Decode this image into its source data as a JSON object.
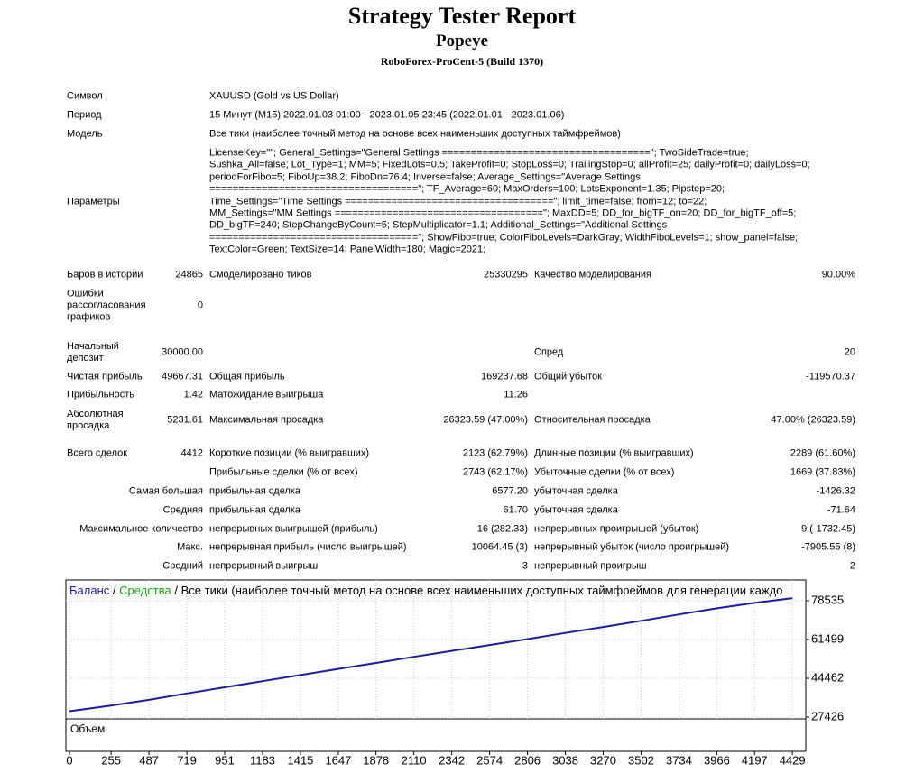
{
  "header": {
    "title": "Strategy Tester Report",
    "subtitle": "Popeye",
    "server": "RoboForex-ProCent-5 (Build 1370)"
  },
  "info": [
    {
      "label": "Символ",
      "value": "XAUUSD (Gold vs US Dollar)"
    },
    {
      "label": "Период",
      "value": "15 Минут (M15) 2022.01.03 01:00 - 2023.01.05 23:45 (2022.01.01 - 2023.01.06)"
    },
    {
      "label": "Модель",
      "value": "Все тики (наиболее точный метод на основе всех наименьших доступных таймфреймов)"
    }
  ],
  "params": {
    "label": "Параметры",
    "lines": [
      "LicenseKey=\"\"; General_Settings=\"General Settings ====================================\"; TwoSideTrade=true;",
      "Sushka_All=false; Lot_Type=1; MM=5; FixedLots=0.5; TakeProfit=0; StopLoss=0; TrailingStop=0; allProfit=25; dailyProfit=0; dailyLoss=0;",
      "periodForFibo=5; FiboUp=38.2; FiboDn=76.4; Inverse=false; Average_Settings=\"Average Settings",
      "====================================\"; TF_Average=60; MaxOrders=100; LotsExponent=1.35; Pipstep=20;",
      "Time_Settings=\"Time Settings ====================================\"; limit_time=false; from=12; to=22;",
      "MM_Settings=\"MM Settings ====================================\"; MaxDD=5; DD_for_bigTF_on=20; DD_for_bigTF_off=5;",
      "DD_bigTF=240; StepChangeByCount=5; StepMultiplicator=1.1; Additional_Settings=\"Additional Settings",
      "====================================\"; ShowFibo=true; ColorFiboLevels=DarkGray; WidthFiboLevels=1; show_panel=false;",
      "TextColor=Green; TextSize=14; PanelWidth=180; Magic=2021;"
    ]
  },
  "stats": [
    {
      "l1": "Баров в истории",
      "v1": "24865",
      "l2": "Смоделировано тиков",
      "v2": "25330295",
      "l3": "Качество моделирования",
      "v3": "90.00%"
    },
    {
      "l1": "Ошибки рассогласования графиков",
      "v1": "0"
    },
    {
      "l1": "Начальный депозит",
      "v1": "30000.00",
      "l3": "Спред",
      "v3": "20"
    },
    {
      "l1": "Чистая прибыль",
      "v1": "49667.31",
      "l2": "Общая прибыль",
      "v2": "169237.68",
      "l3": "Общий убыток",
      "v3": "-119570.37"
    },
    {
      "l1": "Прибыльность",
      "v1": "1.42",
      "l2": "Матожидание выигрыша",
      "v2": "11.26"
    },
    {
      "l1": "Абсолютная просадка",
      "v1": "5231.61",
      "l2": "Максимальная просадка",
      "v2": "26323.59 (47.00%)",
      "l3": "Относительная просадка",
      "v3": "47.00% (26323.59)"
    },
    {
      "l1": "Всего сделок",
      "v1": "4412",
      "l2": "Короткие позиции (% выигравших)",
      "v2": "2123 (62.79%)",
      "l3": "Длинные позиции (% выигравших)",
      "v3": "2289 (61.60%)"
    },
    {
      "l2": "Прибыльные сделки (% от всех)",
      "v2": "2743 (62.17%)",
      "l3": "Убыточные сделки (% от всех)",
      "v3": "1669 (37.83%)"
    },
    {
      "h": "Самая большая",
      "l2": "прибыльная сделка",
      "v2": "6577.20",
      "l3": "убыточная сделка",
      "v3": "-1426.32"
    },
    {
      "h": "Средняя",
      "l2": "прибыльная сделка",
      "v2": "61.70",
      "l3": "убыточная сделка",
      "v3": "-71.64"
    },
    {
      "h": "Максимальное количество",
      "l2": "непрерывных выигрышей (прибыль)",
      "v2": "16 (282.33)",
      "l3": "непрерывных проигрышей (убыток)",
      "v3": "9 (-1732.45)"
    },
    {
      "h": "Макс.",
      "l2": "непрерывная прибыль (число выигрышей)",
      "v2": "10064.45 (3)",
      "l3": "непрерывный убыток (число проигрышей)",
      "v3": "-7905.55 (8)"
    },
    {
      "h": "Средний",
      "l2": "непрерывный выигрыш",
      "v2": "3",
      "l3": "непрерывный проигрыш",
      "v3": "2"
    }
  ],
  "chart": {
    "type": "line",
    "separator": "/",
    "legend_text": "Все тики (наиболее точный метод на основе всех наименьших доступных таймфреймов для генерации каждо",
    "volume_label": "Объем",
    "x": [
      0,
      255,
      487,
      719,
      951,
      1183,
      1415,
      1647,
      1878,
      2110,
      2342,
      2574,
      2806,
      3038,
      3270,
      3502,
      3734,
      3966,
      4197,
      4429
    ],
    "series": [
      {
        "name": "Баланс",
        "color": "#1c1c9c",
        "values": [
          30000,
          32500,
          35000,
          37800,
          40500,
          43200,
          45900,
          48600,
          51200,
          53900,
          56500,
          59100,
          61700,
          64400,
          67000,
          69700,
          72500,
          75200,
          77600,
          79667
        ]
      },
      {
        "name": "Средства",
        "color": "#1a9c1a"
      }
    ],
    "xlim": [
      -22,
      4511
    ],
    "ylim": [
      26634,
      87647
    ],
    "xticks": [
      0,
      255,
      487,
      719,
      951,
      1183,
      1415,
      1647,
      1878,
      2110,
      2342,
      2574,
      2806,
      3038,
      3270,
      3502,
      3734,
      3966,
      4197,
      4429
    ],
    "yticks": [
      27426,
      44462,
      61499,
      78535
    ],
    "grid": true
  }
}
